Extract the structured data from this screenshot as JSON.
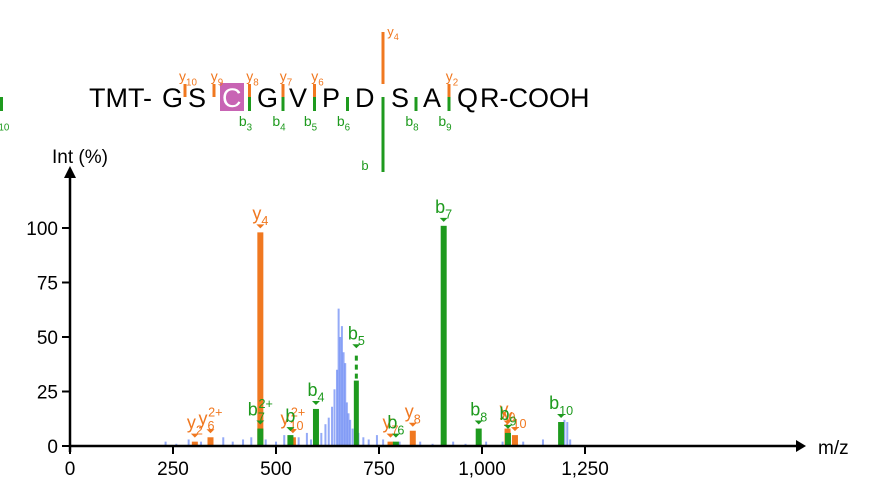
{
  "chart_data": {
    "type": "bar",
    "title": "",
    "xlabel": "m/z",
    "ylabel": "Int (%)",
    "xlim": [
      0,
      1400
    ],
    "ylim": [
      0,
      120
    ],
    "xticks": [
      0,
      250,
      500,
      750,
      1000,
      1250
    ],
    "xtick_labels": [
      "0",
      "250",
      "500",
      "750",
      "1,000",
      "1,250"
    ],
    "yticks": [
      0,
      25,
      50,
      75,
      100
    ],
    "ytick_labels": [
      "0",
      "25",
      "50",
      "75",
      "100"
    ],
    "colors": {
      "y_ion": "#F07820",
      "b_ion": "#1E9A1E",
      "unassigned": "#3C64F0",
      "modified_residue": "#C864B4"
    },
    "sequence": {
      "prefix": "TMT-",
      "residues": [
        "G",
        "S",
        "C",
        "G",
        "V",
        "P",
        "D",
        "S",
        "A",
        "Q"
      ],
      "suffix": "R-COOH",
      "highlighted_residue_index": 2,
      "y_cleavages": [
        {
          "after": 0,
          "ion": "y",
          "num": "10"
        },
        {
          "after": 1,
          "ion": "y",
          "num": "9"
        },
        {
          "after": 2,
          "ion": "y",
          "num": "8"
        },
        {
          "after": 3,
          "ion": "y",
          "num": "7"
        },
        {
          "after": 4,
          "ion": "y",
          "num": "6"
        },
        {
          "after": 6,
          "ion": "y",
          "num": "4"
        },
        {
          "after": 8,
          "ion": "y",
          "num": "2"
        }
      ],
      "b_cleavages": [
        {
          "after": 2,
          "ion": "b",
          "num": "3"
        },
        {
          "after": 3,
          "ion": "b",
          "num": "4"
        },
        {
          "after": 4,
          "ion": "b",
          "num": "5"
        },
        {
          "after": 5,
          "ion": "b",
          "num": "6"
        },
        {
          "after": 6,
          "ion": "b",
          "num": ""
        },
        {
          "after": 7,
          "ion": "b",
          "num": "8"
        },
        {
          "after": 8,
          "ion": "b",
          "num": "9"
        },
        {
          "after": 9,
          "ion": "b",
          "num": "10"
        }
      ]
    },
    "series": [
      {
        "name": "y",
        "color": "#F07820",
        "peaks": [
          {
            "mz": 303,
            "intensity": 2,
            "label": "y",
            "sub": "2",
            "sup": ""
          },
          {
            "mz": 341,
            "intensity": 4,
            "label": "y",
            "sub": "6",
            "sup": "2+"
          },
          {
            "mz": 462,
            "intensity": 98,
            "label": "y",
            "sub": "4",
            "sup": ""
          },
          {
            "mz": 541,
            "intensity": 4,
            "label": "y",
            "sub": "10",
            "sup": "2+"
          },
          {
            "mz": 778,
            "intensity": 2,
            "label": "y",
            "sub": "7",
            "sup": ""
          },
          {
            "mz": 832,
            "intensity": 7,
            "label": "y",
            "sub": "8",
            "sup": ""
          },
          {
            "mz": 1062,
            "intensity": 8,
            "label": "y",
            "sub": "9",
            "sup": ""
          },
          {
            "mz": 1080,
            "intensity": 5,
            "label": "y",
            "sub": "10",
            "sup": ""
          }
        ]
      },
      {
        "name": "b",
        "color": "#1E9A1E",
        "peaks": [
          {
            "mz": 462,
            "intensity": 8,
            "label": "b",
            "sub": "7",
            "sup": "2+"
          },
          {
            "mz": 535,
            "intensity": 5,
            "label": "b",
            "sub": "",
            "sup": ""
          },
          {
            "mz": 597,
            "intensity": 17,
            "label": "b",
            "sub": "4",
            "sup": ""
          },
          {
            "mz": 695,
            "intensity": 30,
            "label": "b",
            "sub": "5",
            "sup": ""
          },
          {
            "mz": 791,
            "intensity": 2,
            "label": "b",
            "sub": "6",
            "sup": ""
          },
          {
            "mz": 907,
            "intensity": 101,
            "label": "b",
            "sub": "7",
            "sup": ""
          },
          {
            "mz": 992,
            "intensity": 8,
            "label": "b",
            "sub": "8",
            "sup": ""
          },
          {
            "mz": 1063,
            "intensity": 6,
            "label": "b",
            "sub": "9",
            "sup": ""
          },
          {
            "mz": 1192,
            "intensity": 11,
            "label": "b",
            "sub": "10",
            "sup": ""
          }
        ]
      },
      {
        "name": "unassigned",
        "color": "#3C64F0",
        "peaks": [
          {
            "mz": 232,
            "intensity": 2
          },
          {
            "mz": 258,
            "intensity": 1
          },
          {
            "mz": 288,
            "intensity": 3
          },
          {
            "mz": 318,
            "intensity": 2
          },
          {
            "mz": 345,
            "intensity": 2
          },
          {
            "mz": 372,
            "intensity": 4
          },
          {
            "mz": 395,
            "intensity": 2
          },
          {
            "mz": 420,
            "intensity": 3
          },
          {
            "mz": 440,
            "intensity": 4
          },
          {
            "mz": 475,
            "intensity": 3
          },
          {
            "mz": 500,
            "intensity": 2
          },
          {
            "mz": 520,
            "intensity": 5
          },
          {
            "mz": 555,
            "intensity": 4
          },
          {
            "mz": 575,
            "intensity": 6
          },
          {
            "mz": 585,
            "intensity": 3
          },
          {
            "mz": 610,
            "intensity": 6
          },
          {
            "mz": 620,
            "intensity": 10
          },
          {
            "mz": 628,
            "intensity": 13
          },
          {
            "mz": 636,
            "intensity": 18
          },
          {
            "mz": 642,
            "intensity": 26
          },
          {
            "mz": 648,
            "intensity": 35
          },
          {
            "mz": 652,
            "intensity": 63
          },
          {
            "mz": 656,
            "intensity": 50
          },
          {
            "mz": 660,
            "intensity": 55
          },
          {
            "mz": 664,
            "intensity": 43
          },
          {
            "mz": 668,
            "intensity": 38
          },
          {
            "mz": 672,
            "intensity": 20
          },
          {
            "mz": 676,
            "intensity": 15
          },
          {
            "mz": 680,
            "intensity": 12
          },
          {
            "mz": 686,
            "intensity": 8
          },
          {
            "mz": 700,
            "intensity": 6
          },
          {
            "mz": 712,
            "intensity": 4
          },
          {
            "mz": 725,
            "intensity": 3
          },
          {
            "mz": 745,
            "intensity": 5
          },
          {
            "mz": 760,
            "intensity": 3
          },
          {
            "mz": 800,
            "intensity": 2
          },
          {
            "mz": 850,
            "intensity": 2
          },
          {
            "mz": 880,
            "intensity": 1
          },
          {
            "mz": 930,
            "intensity": 2
          },
          {
            "mz": 960,
            "intensity": 1
          },
          {
            "mz": 1010,
            "intensity": 2
          },
          {
            "mz": 1050,
            "intensity": 2
          },
          {
            "mz": 1100,
            "intensity": 2
          },
          {
            "mz": 1148,
            "intensity": 3
          },
          {
            "mz": 1200,
            "intensity": 12
          },
          {
            "mz": 1207,
            "intensity": 11
          },
          {
            "mz": 1214,
            "intensity": 3
          }
        ]
      }
    ]
  }
}
